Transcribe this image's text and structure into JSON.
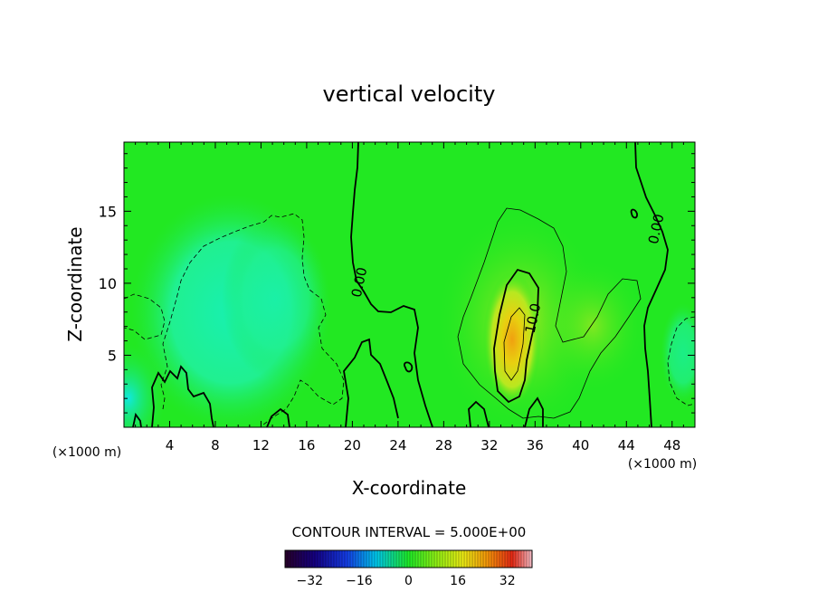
{
  "chart_data": {
    "type": "heatmap",
    "title": "vertical velocity",
    "xlabel": "X-coordinate",
    "ylabel": "Z-coordinate",
    "x_unit": "(×1000 m)",
    "y_unit": "(×1000 m)",
    "xlim": [
      0,
      50
    ],
    "ylim": [
      0,
      19.8
    ],
    "x_ticks": [
      4,
      8,
      12,
      16,
      20,
      24,
      28,
      32,
      36,
      40,
      44,
      48
    ],
    "y_ticks": [
      5,
      10,
      15
    ],
    "contour_interval_text": "CONTOUR INTERVAL = 5.000E+00",
    "contour_interval": 5.0,
    "contour_labels": [
      {
        "text": "0.00",
        "x": 21.0,
        "y": 10.0
      },
      {
        "text": "10.0",
        "x": 36.2,
        "y": 7.5
      },
      {
        "text": "0.00",
        "x": 47.0,
        "y": 13.7
      }
    ],
    "colorbar": {
      "range": [
        -40,
        40
      ],
      "ticks": [
        -32,
        -16,
        0,
        16,
        32
      ],
      "tick_labels": [
        "−32",
        "−16",
        "0",
        "16",
        "32"
      ]
    },
    "field": {
      "background": 0,
      "features": [
        {
          "kind": "updraft",
          "x": 34.0,
          "z": 5.5,
          "peak": 22
        },
        {
          "kind": "updraft",
          "x": 34.5,
          "z": 6.5,
          "peak": 8
        },
        {
          "kind": "updraft",
          "x": 41.0,
          "z": 4.0,
          "peak": 5
        },
        {
          "kind": "downdraft",
          "x": 9.5,
          "z": 8.0,
          "peak": -9
        },
        {
          "kind": "downdraft",
          "x": 14.0,
          "z": 9.0,
          "peak": -4
        },
        {
          "kind": "downdraft",
          "x": 0.8,
          "z": 1.8,
          "peak": -9
        }
      ]
    }
  }
}
